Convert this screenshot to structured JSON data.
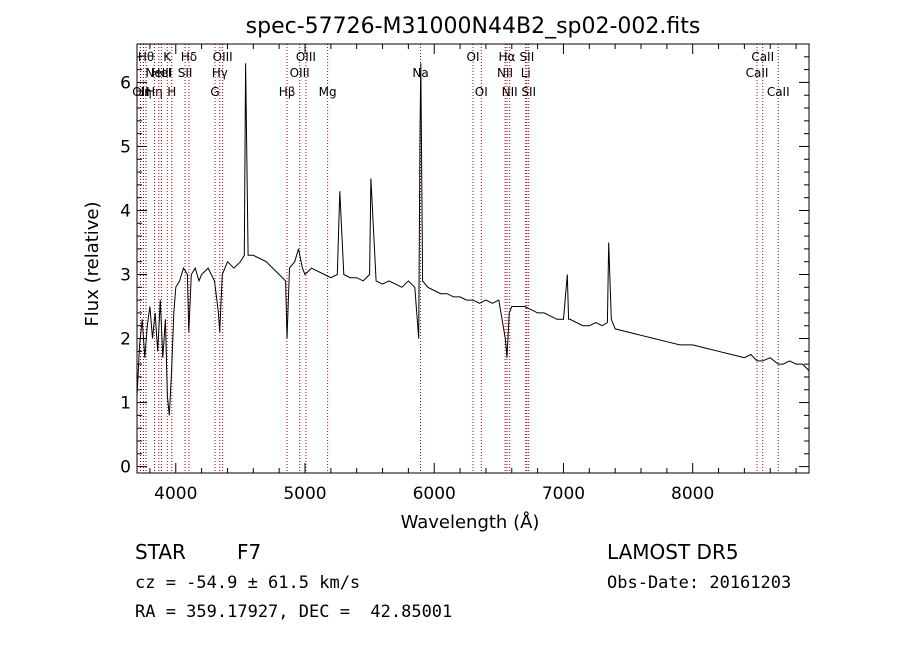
{
  "chart_data": {
    "type": "line",
    "title": "spec-57726-M31000N44B2_sp02-002.fits",
    "xlabel": "Wavelength (Å)",
    "ylabel": "Flux (relative)",
    "xlim": [
      3700,
      8900
    ],
    "ylim": [
      -0.1,
      6.6
    ],
    "xticks": [
      4000,
      5000,
      6000,
      7000,
      8000
    ],
    "yticks": [
      0,
      1,
      2,
      3,
      4,
      5,
      6
    ],
    "grid": false,
    "series": [
      {
        "x": [
          3700,
          3720,
          3740,
          3760,
          3780,
          3800,
          3820,
          3840,
          3860,
          3880,
          3900,
          3920,
          3935,
          3950,
          3968,
          3985,
          4000,
          4030,
          4060,
          4090,
          4101,
          4120,
          4150,
          4180,
          4200,
          4250,
          4300,
          4330,
          4340,
          4360,
          4400,
          4450,
          4500,
          4530,
          4540,
          4560,
          4600,
          4650,
          4700,
          4750,
          4800,
          4850,
          4861,
          4880,
          4920,
          4950,
          4980,
          5000,
          5050,
          5100,
          5150,
          5200,
          5250,
          5269,
          5300,
          5350,
          5400,
          5450,
          5500,
          5510,
          5550,
          5600,
          5650,
          5700,
          5750,
          5800,
          5850,
          5880,
          5890,
          5896,
          5910,
          5950,
          6000,
          6050,
          6100,
          6150,
          6200,
          6250,
          6300,
          6350,
          6400,
          6450,
          6500,
          6550,
          6563,
          6580,
          6600,
          6650,
          6700,
          6750,
          6800,
          6850,
          6900,
          6950,
          7000,
          7030,
          7040,
          7050,
          7100,
          7150,
          7200,
          7250,
          7300,
          7340,
          7350,
          7370,
          7400,
          7500,
          7600,
          7700,
          7800,
          7900,
          8000,
          8100,
          8200,
          8300,
          8400,
          8450,
          8498,
          8542,
          8600,
          8662,
          8700,
          8750,
          8800,
          8850,
          8900
        ],
        "y": [
          1.1,
          1.9,
          2.3,
          1.7,
          2.2,
          2.5,
          2.0,
          2.4,
          1.8,
          2.6,
          1.7,
          2.3,
          1.1,
          0.8,
          1.5,
          2.4,
          2.8,
          2.9,
          3.1,
          3.0,
          2.1,
          3.0,
          3.1,
          2.9,
          3.0,
          3.1,
          2.9,
          2.4,
          2.1,
          3.0,
          3.2,
          3.1,
          3.2,
          3.3,
          6.3,
          3.3,
          3.3,
          3.25,
          3.2,
          3.1,
          3.0,
          2.9,
          2.0,
          3.1,
          3.2,
          3.4,
          3.1,
          3.0,
          3.1,
          3.05,
          3.0,
          2.95,
          3.0,
          4.3,
          3.0,
          2.95,
          2.95,
          2.9,
          3.0,
          4.5,
          2.9,
          2.85,
          2.9,
          2.85,
          2.8,
          2.9,
          2.8,
          2.0,
          5.2,
          6.3,
          2.9,
          2.8,
          2.75,
          2.7,
          2.7,
          2.65,
          2.65,
          2.6,
          2.6,
          2.55,
          2.6,
          2.55,
          2.6,
          2.0,
          1.7,
          2.4,
          2.5,
          2.5,
          2.5,
          2.45,
          2.4,
          2.4,
          2.35,
          2.3,
          2.3,
          3.0,
          2.3,
          2.3,
          2.25,
          2.2,
          2.2,
          2.25,
          2.2,
          2.25,
          3.5,
          2.3,
          2.15,
          2.1,
          2.05,
          2.0,
          1.95,
          1.9,
          1.9,
          1.85,
          1.8,
          1.75,
          1.7,
          1.75,
          1.65,
          1.65,
          1.7,
          1.6,
          1.6,
          1.65,
          1.6,
          1.6,
          1.5
        ]
      }
    ],
    "lines": [
      {
        "x": 3727,
        "label": "OII",
        "row": 2
      },
      {
        "x": 3750,
        "label": "Hη",
        "row": 2
      },
      {
        "x": 3770,
        "label": "Hθ",
        "row": 0
      },
      {
        "x": 3835,
        "label": "Hη",
        "row": 2
      },
      {
        "x": 3869,
        "label": "NeIII",
        "row": 1
      },
      {
        "x": 3889,
        "label": "HeI",
        "row": 1
      },
      {
        "x": 3934,
        "label": "K",
        "row": 0
      },
      {
        "x": 3969,
        "label": "H",
        "row": 2
      },
      {
        "x": 4072,
        "label": "SII",
        "row": 1
      },
      {
        "x": 4102,
        "label": "Hδ",
        "row": 0
      },
      {
        "x": 4304,
        "label": "G",
        "row": 2
      },
      {
        "x": 4341,
        "label": "Hγ",
        "row": 1
      },
      {
        "x": 4363,
        "label": "OIII",
        "row": 0
      },
      {
        "x": 4861,
        "label": "Hβ",
        "row": 2
      },
      {
        "x": 4959,
        "label": "OIII",
        "row": 1
      },
      {
        "x": 5007,
        "label": "OIII",
        "row": 0
      },
      {
        "x": 5175,
        "label": "Mg",
        "row": 2
      },
      {
        "x": 5894,
        "label": "Na",
        "row": 1
      },
      {
        "x": 6300,
        "label": "OI",
        "row": 0
      },
      {
        "x": 6364,
        "label": "OI",
        "row": 2
      },
      {
        "x": 6548,
        "label": "NII",
        "row": 1
      },
      {
        "x": 6563,
        "label": "Hα",
        "row": 0
      },
      {
        "x": 6584,
        "label": "NII",
        "row": 2
      },
      {
        "x": 6708,
        "label": "Li",
        "row": 1
      },
      {
        "x": 6717,
        "label": "SII",
        "row": 0
      },
      {
        "x": 6731,
        "label": "SII",
        "row": 2
      },
      {
        "x": 8498,
        "label": "CaII",
        "row": 1
      },
      {
        "x": 8542,
        "label": "CaII",
        "row": 0
      },
      {
        "x": 8662,
        "label": "CaII",
        "row": 2
      }
    ]
  },
  "info": {
    "class_label": "STAR",
    "subclass": "F7",
    "survey": "LAMOST DR5",
    "cz_line": "cz = -54.9 ± 61.5 km/s",
    "obs_date": "Obs-Date: 20161203",
    "coords": "RA = 359.17927, DEC =  42.85001"
  },
  "colors": {
    "spectrum": "#000000",
    "marker_lines": "#a00000"
  }
}
